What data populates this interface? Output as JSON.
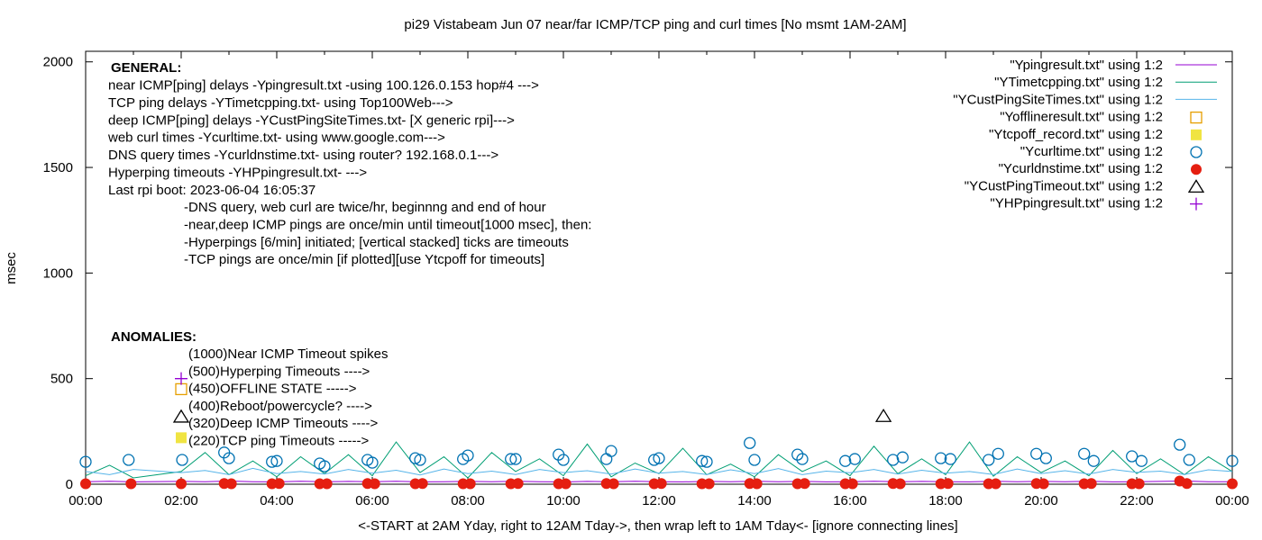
{
  "chart_data": {
    "type": "line",
    "title": "pi29 Vistabeam Jun 07  near/far ICMP/TCP ping and curl times [No msmt 1AM-2AM]",
    "xlabel": "<-START at 2AM Yday, right to 12AM Tday->, then wrap left to 1AM Tday<- [ignore connecting lines]",
    "ylabel": "msec",
    "xlim_hours": [
      0,
      24
    ],
    "ylim": [
      0,
      2050
    ],
    "x_ticks": [
      "00:00",
      "02:00",
      "04:00",
      "06:00",
      "08:00",
      "10:00",
      "12:00",
      "14:00",
      "16:00",
      "18:00",
      "20:00",
      "22:00",
      "00:00"
    ],
    "y_ticks": [
      0,
      500,
      1000,
      1500,
      2000
    ],
    "grid": false,
    "legend_placement": "top-right",
    "series": [
      {
        "name": "\"Ypingresult.txt\" using 1:2",
        "style": "line",
        "color": "#9400d3",
        "x": [
          0,
          0.5,
          1,
          2,
          2.5,
          3,
          3.5,
          4,
          4.5,
          5,
          5.5,
          6,
          6.5,
          7,
          7.5,
          8,
          8.5,
          9,
          9.5,
          10,
          10.5,
          11,
          11.5,
          12,
          12.5,
          13,
          13.5,
          14,
          14.5,
          15,
          15.5,
          16,
          16.5,
          17,
          17.5,
          18,
          18.5,
          19,
          19.5,
          20,
          20.5,
          21,
          21.5,
          22,
          22.5,
          23,
          23.5,
          24
        ],
        "y": [
          12,
          14,
          11,
          13,
          12,
          15,
          12,
          11,
          14,
          12,
          13,
          12,
          14,
          11,
          12,
          13,
          12,
          14,
          12,
          11,
          13,
          12,
          14,
          12,
          11,
          13,
          12,
          14,
          12,
          13,
          11,
          12,
          14,
          12,
          13,
          12,
          11,
          14,
          12,
          13,
          12,
          14,
          11,
          12,
          13,
          15,
          12,
          12
        ]
      },
      {
        "name": "\"YTimetcpping.txt\" using 1:2",
        "style": "line",
        "color": "#009e73",
        "x": [
          0,
          0.5,
          1,
          2,
          2.5,
          3,
          3.5,
          4,
          4.5,
          5,
          5.5,
          6,
          6.5,
          7,
          7.5,
          8,
          8.5,
          9,
          9.5,
          10,
          10.5,
          11,
          11.5,
          12,
          12.5,
          13,
          13.5,
          14,
          14.5,
          15,
          15.5,
          16,
          16.5,
          17,
          17.5,
          18,
          18.5,
          19,
          19.5,
          20,
          20.5,
          21,
          21.5,
          22,
          22.5,
          23,
          23.5,
          24
        ],
        "y": [
          40,
          90,
          30,
          60,
          150,
          45,
          110,
          35,
          130,
          50,
          140,
          40,
          200,
          55,
          130,
          30,
          150,
          60,
          120,
          40,
          190,
          35,
          100,
          50,
          170,
          45,
          95,
          35,
          140,
          60,
          110,
          40,
          180,
          50,
          120,
          45,
          200,
          38,
          130,
          55,
          110,
          40,
          160,
          50,
          120,
          45,
          130,
          60
        ]
      },
      {
        "name": "\"YCustPingSiteTimes.txt\" using 1:2",
        "style": "line",
        "color": "#56b4e9",
        "x": [
          0,
          0.5,
          1,
          2,
          2.5,
          3,
          3.5,
          4,
          4.5,
          5,
          5.5,
          6,
          6.5,
          7,
          7.5,
          8,
          8.5,
          9,
          9.5,
          10,
          10.5,
          11,
          11.5,
          12,
          12.5,
          13,
          13.5,
          14,
          14.5,
          15,
          15.5,
          16,
          16.5,
          17,
          17.5,
          18,
          18.5,
          19,
          19.5,
          20,
          20.5,
          21,
          21.5,
          22,
          22.5,
          23,
          23.5,
          24
        ],
        "y": [
          60,
          45,
          70,
          55,
          65,
          45,
          75,
          50,
          60,
          48,
          70,
          52,
          66,
          44,
          72,
          50,
          62,
          46,
          70,
          55,
          64,
          48,
          72,
          52,
          60,
          46,
          68,
          50,
          74,
          45,
          62,
          54,
          70,
          48,
          66,
          52,
          60,
          46,
          72,
          50,
          64,
          48,
          70,
          56,
          62,
          46,
          68,
          60
        ]
      },
      {
        "name": "\"Yofflineresult.txt\" using 1:2",
        "style": "open-square",
        "color": "#e69f00",
        "x": [
          2.0
        ],
        "y": [
          450
        ]
      },
      {
        "name": "\"Ytcpoff_record.txt\" using 1:2",
        "style": "filled-square",
        "color": "#f0e442",
        "x": [
          2.0
        ],
        "y": [
          220
        ]
      },
      {
        "name": "\"Ycurltime.txt\" using 1:2",
        "style": "open-circle",
        "color": "#0072b2",
        "x": [
          0,
          0.9,
          2.02,
          2.9,
          3.0,
          3.9,
          4.0,
          4.9,
          5.0,
          5.9,
          6.0,
          6.9,
          7.0,
          7.9,
          8.0,
          8.9,
          9.0,
          9.9,
          10.0,
          10.9,
          11.0,
          11.9,
          12.0,
          12.9,
          13.0,
          13.9,
          14.0,
          14.9,
          15.0,
          15.9,
          16.1,
          16.9,
          17.1,
          17.9,
          18.1,
          18.9,
          19.1,
          19.9,
          20.1,
          20.9,
          21.1,
          21.9,
          22.1,
          22.9,
          23.1,
          24
        ],
        "y": [
          106,
          115,
          115,
          150,
          123,
          106,
          110,
          98,
          85,
          115,
          102,
          123,
          115,
          119,
          136,
          119,
          119,
          140,
          115,
          119,
          157,
          115,
          123,
          110,
          106,
          195,
          115,
          140,
          119,
          110,
          119,
          115,
          127,
          123,
          119,
          115,
          144,
          144,
          123,
          144,
          110,
          132,
          110,
          187,
          115,
          110
        ]
      },
      {
        "name": "\"Ycurldnstime.txt\" using 1:2",
        "style": "filled-circle",
        "color": "#e51e10",
        "x": [
          0,
          0.95,
          2.0,
          2.9,
          3.05,
          3.9,
          4.05,
          4.9,
          5.05,
          5.9,
          6.05,
          6.9,
          7.05,
          7.9,
          8.05,
          8.9,
          9.05,
          9.9,
          10.05,
          10.9,
          11.05,
          11.9,
          12.05,
          12.9,
          13.05,
          13.9,
          14.05,
          14.9,
          15.05,
          15.9,
          16.05,
          16.9,
          17.05,
          17.9,
          18.05,
          18.9,
          19.05,
          19.9,
          20.05,
          20.9,
          21.05,
          21.9,
          22.05,
          22.9,
          23.05,
          24
        ],
        "y": [
          2,
          2,
          2,
          3,
          2,
          2,
          3,
          2,
          2,
          3,
          2,
          2,
          3,
          2,
          2,
          2,
          3,
          2,
          2,
          3,
          2,
          2,
          3,
          2,
          2,
          3,
          2,
          2,
          3,
          2,
          2,
          3,
          2,
          2,
          3,
          2,
          2,
          3,
          2,
          2,
          3,
          2,
          2,
          15,
          3,
          2
        ]
      },
      {
        "name": "\"YCustPingTimeout.txt\" using 1:2",
        "style": "open-triangle",
        "color": "#000000",
        "x": [
          2.0,
          16.7
        ],
        "y": [
          320,
          323
        ]
      },
      {
        "name": "\"YHPpingresult.txt\" using 1:2",
        "style": "plus",
        "color": "#9400d3",
        "x": [
          2.0
        ],
        "y": [
          500
        ]
      }
    ],
    "annotations": {
      "general_heading": "GENERAL:",
      "general_lines": [
        "near ICMP[ping] delays -Ypingresult.txt -using 100.126.0.153 hop#4 --->",
        "TCP ping delays -YTimetcpping.txt- using Top100Web--->",
        "deep ICMP[ping] delays -YCustPingSiteTimes.txt- [X generic rpi]--->",
        "web curl times -Ycurltime.txt- using www.google.com--->",
        "DNS query times -Ycurldnstime.txt- using router? 192.168.0.1--->",
        "Hyperping timeouts -YHPpingresult.txt- --->",
        "Last rpi boot: 2023-06-04 16:05:37"
      ],
      "notes": [
        "-DNS query, web curl are twice/hr, beginnng and end of hour",
        "-near,deep ICMP pings are once/min until timeout[1000 msec], then:",
        "  -Hyperpings [6/min] initiated; [vertical stacked] ticks are timeouts",
        "-TCP pings are once/min [if plotted][use Ytcpoff for timeouts]"
      ],
      "anomalies_heading": "ANOMALIES:",
      "anomalies": [
        "(1000)Near ICMP Timeout spikes",
        "(500)Hyperping Timeouts ---->",
        "(450)OFFLINE STATE ----->",
        "(400)Reboot/powercycle? ---->",
        "(320)Deep ICMP Timeouts ---->",
        "(220)TCP ping Timeouts ----->"
      ]
    }
  }
}
